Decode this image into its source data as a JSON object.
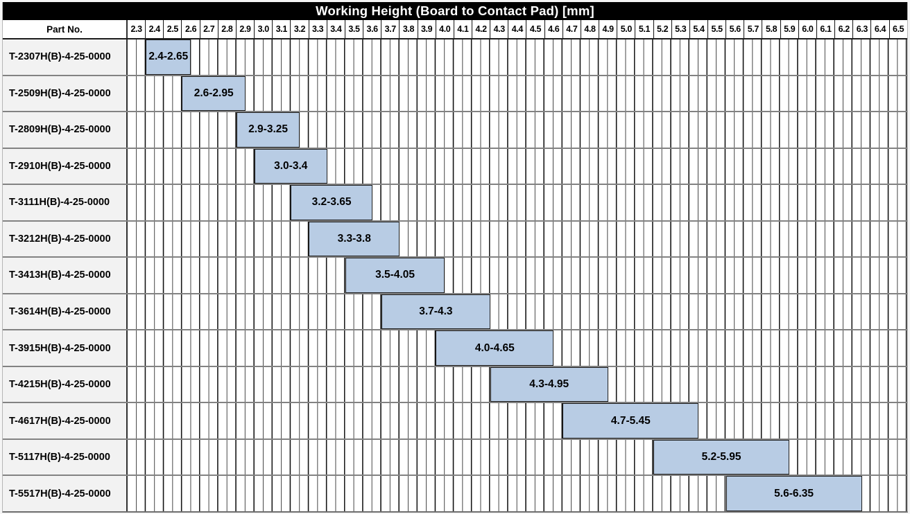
{
  "title": "Working Height (Board to Contact Pad) [mm]",
  "header": {
    "part_no_label": "Part No."
  },
  "colors": {
    "title_bg": "#000000",
    "title_fg": "#ffffff",
    "bar_fill": "#b8cce4",
    "bar_border": "#1c1c1c",
    "part_cell_bg": "#f2f2f2",
    "grid_minor": "#3f3f3f",
    "grid_major": "#111111",
    "row_line": "#828282"
  },
  "chart_data": {
    "type": "bar",
    "subtype": "horizontal-range-gantt",
    "title": "Working Height (Board to Contact Pad) [mm]",
    "unit": "mm",
    "xlim": [
      2.3,
      6.6
    ],
    "tick_step": 0.1,
    "minor_division": 0.05,
    "grid": "on",
    "legend": "none",
    "tick_labels": [
      "2.3",
      "2.4",
      "2.5",
      "2.6",
      "2.7",
      "2.8",
      "2.9",
      "3.0",
      "3.1",
      "3.2",
      "3.3",
      "3.4",
      "3.5",
      "3.6",
      "3.7",
      "3.8",
      "3.9",
      "4.0",
      "4.1",
      "4.2",
      "4.3",
      "4.4",
      "4.5",
      "4.6",
      "4.7",
      "4.8",
      "4.9",
      "5.0",
      "5.1",
      "5.2",
      "5.3",
      "5.4",
      "5.5",
      "5.6",
      "5.7",
      "5.8",
      "5.9",
      "6.0",
      "6.1",
      "6.2",
      "6.3",
      "6.4",
      "6.5"
    ],
    "rows": [
      {
        "part_no": "T-2307H(B)-4-25-0000",
        "start": 2.4,
        "end": 2.65,
        "label": "2.4-2.65"
      },
      {
        "part_no": "T-2509H(B)-4-25-0000",
        "start": 2.6,
        "end": 2.95,
        "label": "2.6-2.95"
      },
      {
        "part_no": "T-2809H(B)-4-25-0000",
        "start": 2.9,
        "end": 3.25,
        "label": "2.9-3.25"
      },
      {
        "part_no": "T-2910H(B)-4-25-0000",
        "start": 3.0,
        "end": 3.4,
        "label": "3.0-3.4"
      },
      {
        "part_no": "T-3111H(B)-4-25-0000",
        "start": 3.2,
        "end": 3.65,
        "label": "3.2-3.65"
      },
      {
        "part_no": "T-3212H(B)-4-25-0000",
        "start": 3.3,
        "end": 3.8,
        "label": "3.3-3.8"
      },
      {
        "part_no": "T-3413H(B)-4-25-0000",
        "start": 3.5,
        "end": 4.05,
        "label": "3.5-4.05"
      },
      {
        "part_no": "T-3614H(B)-4-25-0000",
        "start": 3.7,
        "end": 4.3,
        "label": "3.7-4.3"
      },
      {
        "part_no": "T-3915H(B)-4-25-0000",
        "start": 4.0,
        "end": 4.65,
        "label": "4.0-4.65"
      },
      {
        "part_no": "T-4215H(B)-4-25-0000",
        "start": 4.3,
        "end": 4.95,
        "label": "4.3-4.95"
      },
      {
        "part_no": "T-4617H(B)-4-25-0000",
        "start": 4.7,
        "end": 5.45,
        "label": "4.7-5.45"
      },
      {
        "part_no": "T-5117H(B)-4-25-0000",
        "start": 5.2,
        "end": 5.95,
        "label": "5.2-5.95"
      },
      {
        "part_no": "T-5517H(B)-4-25-0000",
        "start": 5.6,
        "end": 6.35,
        "label": "5.6-6.35"
      }
    ]
  }
}
